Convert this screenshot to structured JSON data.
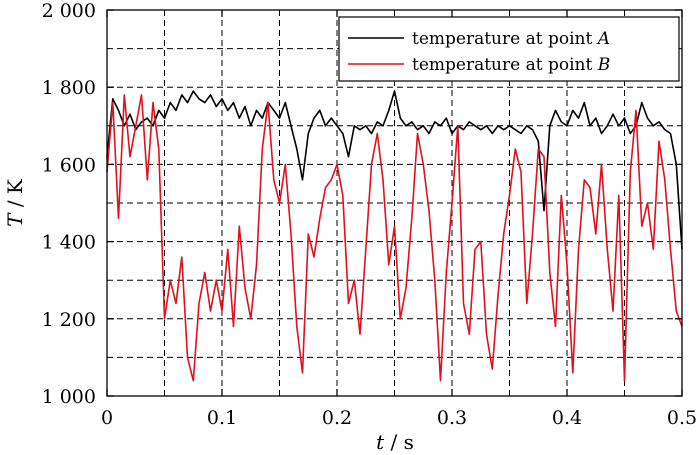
{
  "chart_data": {
    "type": "line",
    "title": "",
    "xlabel": {
      "symbol": "t",
      "unit": " / s"
    },
    "ylabel": {
      "symbol": "T",
      "unit": " / K"
    },
    "xlim": [
      0,
      0.5
    ],
    "ylim": [
      1000,
      2000
    ],
    "x_ticks": [
      0,
      0.1,
      0.2,
      0.3,
      0.4,
      0.5
    ],
    "x_tick_labels": [
      "0",
      "0.1",
      "0.2",
      "0.3",
      "0.4",
      "0.5"
    ],
    "y_ticks": [
      1000,
      1200,
      1400,
      1600,
      1800,
      2000
    ],
    "y_tick_labels": [
      "1 000",
      "1 200",
      "1 400",
      "1 600",
      "1 800",
      "2 000"
    ],
    "grid": {
      "x": [
        0.05,
        0.1,
        0.15,
        0.2,
        0.25,
        0.3,
        0.35,
        0.4,
        0.45
      ],
      "y": [
        1100,
        1200,
        1300,
        1400,
        1500,
        1600,
        1700,
        1800,
        1900
      ]
    },
    "legend_position": "top-right",
    "series": [
      {
        "name": "temperature at point A",
        "legend_prefix": "temperature at point ",
        "legend_point": "A",
        "color": "#000000",
        "x": [
          0,
          0.005,
          0.01,
          0.015,
          0.02,
          0.025,
          0.03,
          0.035,
          0.04,
          0.045,
          0.05,
          0.055,
          0.06,
          0.065,
          0.07,
          0.075,
          0.08,
          0.085,
          0.09,
          0.095,
          0.1,
          0.105,
          0.11,
          0.115,
          0.12,
          0.125,
          0.13,
          0.135,
          0.14,
          0.145,
          0.15,
          0.155,
          0.16,
          0.165,
          0.17,
          0.175,
          0.18,
          0.185,
          0.19,
          0.195,
          0.2,
          0.205,
          0.21,
          0.215,
          0.22,
          0.225,
          0.23,
          0.235,
          0.24,
          0.245,
          0.25,
          0.255,
          0.26,
          0.265,
          0.27,
          0.275,
          0.28,
          0.285,
          0.29,
          0.295,
          0.3,
          0.305,
          0.31,
          0.315,
          0.32,
          0.325,
          0.33,
          0.335,
          0.34,
          0.345,
          0.35,
          0.355,
          0.36,
          0.365,
          0.37,
          0.375,
          0.38,
          0.385,
          0.39,
          0.395,
          0.4,
          0.405,
          0.41,
          0.415,
          0.42,
          0.425,
          0.43,
          0.435,
          0.44,
          0.445,
          0.45,
          0.455,
          0.46,
          0.465,
          0.47,
          0.475,
          0.48,
          0.485,
          0.49,
          0.495,
          0.5
        ],
        "values": [
          1620,
          1770,
          1740,
          1700,
          1730,
          1690,
          1710,
          1720,
          1700,
          1740,
          1720,
          1760,
          1740,
          1780,
          1760,
          1790,
          1770,
          1760,
          1780,
          1750,
          1770,
          1740,
          1760,
          1720,
          1750,
          1700,
          1740,
          1720,
          1760,
          1740,
          1720,
          1760,
          1700,
          1640,
          1560,
          1680,
          1720,
          1740,
          1700,
          1720,
          1700,
          1680,
          1620,
          1700,
          1690,
          1700,
          1680,
          1710,
          1700,
          1740,
          1790,
          1720,
          1700,
          1710,
          1690,
          1700,
          1680,
          1710,
          1700,
          1720,
          1680,
          1700,
          1690,
          1710,
          1700,
          1690,
          1700,
          1680,
          1700,
          1690,
          1700,
          1690,
          1680,
          1700,
          1690,
          1660,
          1480,
          1700,
          1740,
          1710,
          1700,
          1740,
          1720,
          1760,
          1700,
          1720,
          1680,
          1700,
          1730,
          1700,
          1720,
          1680,
          1700,
          1760,
          1720,
          1700,
          1710,
          1690,
          1680,
          1600,
          1380
        ]
      },
      {
        "name": "temperature at point B",
        "legend_prefix": "temperature at point ",
        "legend_point": "B",
        "color": "#e0101e",
        "x": [
          0,
          0.005,
          0.01,
          0.015,
          0.02,
          0.025,
          0.03,
          0.035,
          0.04,
          0.045,
          0.05,
          0.055,
          0.06,
          0.065,
          0.07,
          0.075,
          0.08,
          0.085,
          0.09,
          0.095,
          0.1,
          0.105,
          0.11,
          0.115,
          0.12,
          0.125,
          0.13,
          0.135,
          0.14,
          0.145,
          0.15,
          0.155,
          0.16,
          0.165,
          0.17,
          0.175,
          0.18,
          0.185,
          0.19,
          0.195,
          0.2,
          0.205,
          0.21,
          0.215,
          0.22,
          0.225,
          0.23,
          0.235,
          0.24,
          0.245,
          0.25,
          0.255,
          0.26,
          0.265,
          0.27,
          0.275,
          0.28,
          0.285,
          0.29,
          0.295,
          0.3,
          0.305,
          0.31,
          0.315,
          0.32,
          0.325,
          0.33,
          0.335,
          0.34,
          0.345,
          0.35,
          0.355,
          0.36,
          0.365,
          0.37,
          0.375,
          0.38,
          0.385,
          0.39,
          0.395,
          0.4,
          0.405,
          0.41,
          0.415,
          0.42,
          0.425,
          0.43,
          0.435,
          0.44,
          0.445,
          0.45,
          0.455,
          0.46,
          0.465,
          0.47,
          0.475,
          0.48,
          0.485,
          0.49,
          0.495,
          0.5
        ],
        "values": [
          1580,
          1760,
          1460,
          1780,
          1620,
          1700,
          1780,
          1560,
          1760,
          1640,
          1200,
          1300,
          1240,
          1360,
          1100,
          1040,
          1240,
          1320,
          1220,
          1300,
          1220,
          1380,
          1180,
          1440,
          1280,
          1200,
          1340,
          1640,
          1760,
          1560,
          1500,
          1600,
          1420,
          1180,
          1060,
          1420,
          1360,
          1460,
          1540,
          1560,
          1600,
          1520,
          1240,
          1300,
          1160,
          1380,
          1600,
          1680,
          1560,
          1340,
          1440,
          1200,
          1280,
          1460,
          1680,
          1600,
          1480,
          1300,
          1040,
          1320,
          1500,
          1700,
          1240,
          1160,
          1380,
          1400,
          1160,
          1070,
          1260,
          1420,
          1520,
          1640,
          1580,
          1240,
          1420,
          1640,
          1620,
          1320,
          1180,
          1520,
          1340,
          1060,
          1380,
          1560,
          1540,
          1420,
          1600,
          1380,
          1220,
          1520,
          1040,
          1580,
          1740,
          1440,
          1500,
          1380,
          1660,
          1560,
          1380,
          1220,
          1180
        ]
      }
    ]
  }
}
